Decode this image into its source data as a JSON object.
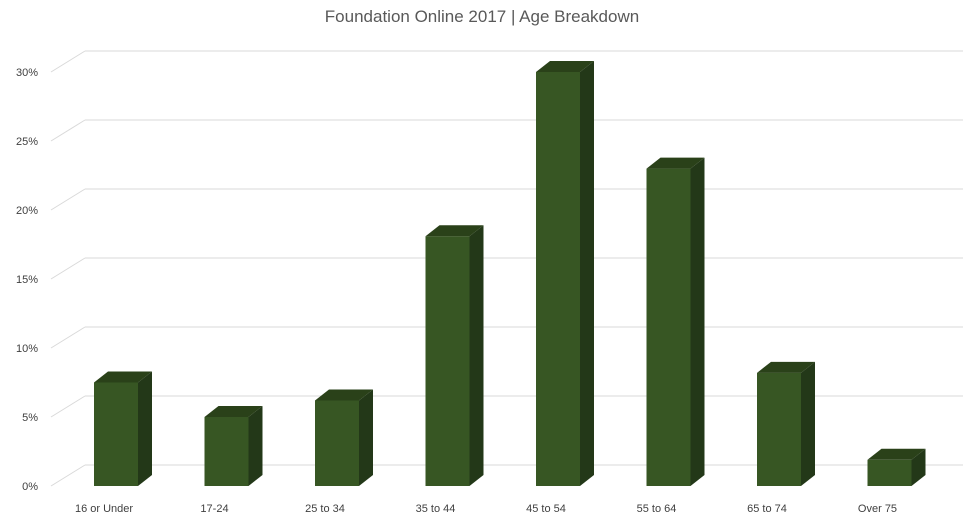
{
  "chart_data": {
    "type": "bar",
    "title": "Foundation Online 2017 | Age Breakdown",
    "xlabel": "",
    "ylabel": "",
    "categories": [
      "16 or Under",
      "17-24",
      "25 to 34",
      "35 to 44",
      "45 to 54",
      "55 to 64",
      "65 to 74",
      "Over 75"
    ],
    "values": [
      7.5,
      5,
      6.2,
      18.1,
      30,
      23,
      8.2,
      1.9
    ],
    "ylim": [
      0,
      30
    ],
    "y_ticks": [
      0,
      5,
      10,
      15,
      20,
      25,
      30
    ],
    "y_tick_labels": [
      "0%",
      "5%",
      "10%",
      "15%",
      "20%",
      "25%",
      "30%"
    ],
    "grid": true,
    "legend": "none",
    "style": "3d-column",
    "colors": {
      "bar_front": "#375623",
      "bar_side": "#233818",
      "bar_top": "#2a4119",
      "grid": "#d9d9d9",
      "text": "#404040"
    }
  }
}
